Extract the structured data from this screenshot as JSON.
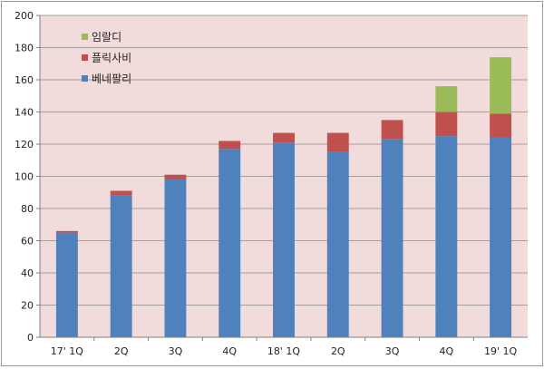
{
  "chart_data": {
    "type": "bar",
    "stacked": true,
    "title": "",
    "xlabel": "",
    "ylabel": "",
    "ylim": [
      0,
      200
    ],
    "yticks": [
      0,
      20,
      40,
      60,
      80,
      100,
      120,
      140,
      160,
      180,
      200
    ],
    "grid": true,
    "legend_position": "top-left",
    "categories": [
      "17' 1Q",
      "2Q",
      "3Q",
      "4Q",
      "18' 1Q",
      "2Q",
      "3Q",
      "4Q",
      "19' 1Q"
    ],
    "series": [
      {
        "name": "베네팔리",
        "color": "#4f81bd",
        "values": [
          65,
          88,
          98,
          117,
          121,
          115,
          123,
          125,
          124
        ]
      },
      {
        "name": "플릭사비",
        "color": "#c0504d",
        "values": [
          1,
          3,
          3,
          5,
          6,
          12,
          12,
          15,
          15
        ]
      },
      {
        "name": "임랄디",
        "color": "#9bbb59",
        "values": [
          0,
          0,
          0,
          0,
          0,
          0,
          0,
          16,
          35
        ]
      }
    ],
    "plot_background": "#f2dcdb"
  }
}
